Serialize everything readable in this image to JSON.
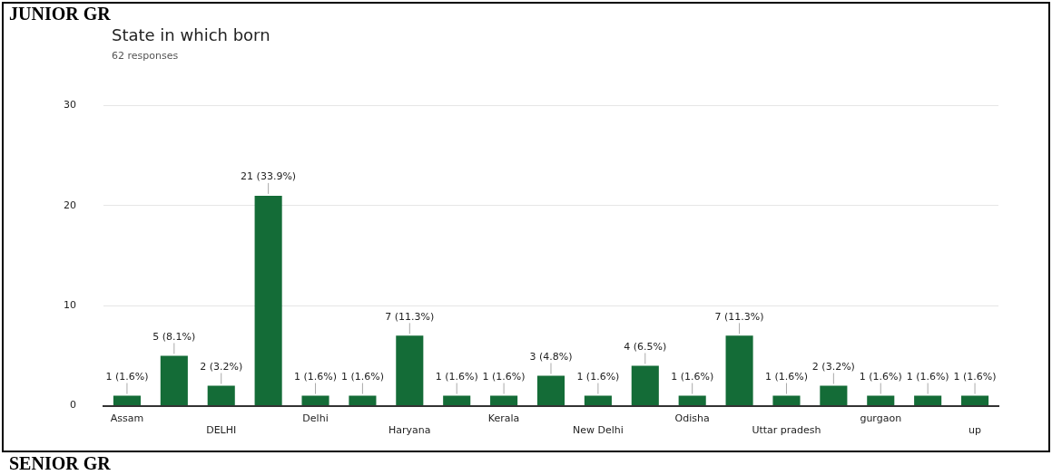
{
  "chart_data": {
    "type": "bar",
    "title": "State in which born",
    "subtitle": "62 responses",
    "annotations": [
      "JUNIOR GR",
      "SENIOR GR"
    ],
    "categories": [
      "Assam",
      null,
      "DELHI",
      null,
      "Delhi",
      null,
      "Haryana",
      null,
      "Kerala",
      null,
      "New Delhi",
      null,
      "Odisha",
      null,
      "Uttar pradesh",
      null,
      "gurgaon",
      null,
      "up"
    ],
    "values": [
      1,
      5,
      2,
      21,
      1,
      1,
      7,
      1,
      1,
      3,
      1,
      4,
      1,
      7,
      1,
      2,
      1,
      1,
      1
    ],
    "value_labels": [
      "1 (1.6%)",
      "5 (8.1%)",
      "2 (3.2%)",
      "21 (33.9%)",
      "1 (1.6%)",
      "1 (1.6%)",
      "7 (11.3%)",
      "1 (1.6%)",
      "1 (1.6%)",
      "3 (4.8%)",
      "1 (1.6%)",
      "4 (6.5%)",
      "1 (1.6%)",
      "7 (11.3%)",
      "1 (1.6%)",
      "2 (3.2%)",
      "1 (1.6%)",
      "1 (1.6%)",
      "1 (1.6%)"
    ],
    "color": "#146c37",
    "ylim": [
      0,
      30
    ],
    "yticks": [
      0,
      10,
      20,
      30
    ],
    "grid": "y",
    "legend": false
  }
}
